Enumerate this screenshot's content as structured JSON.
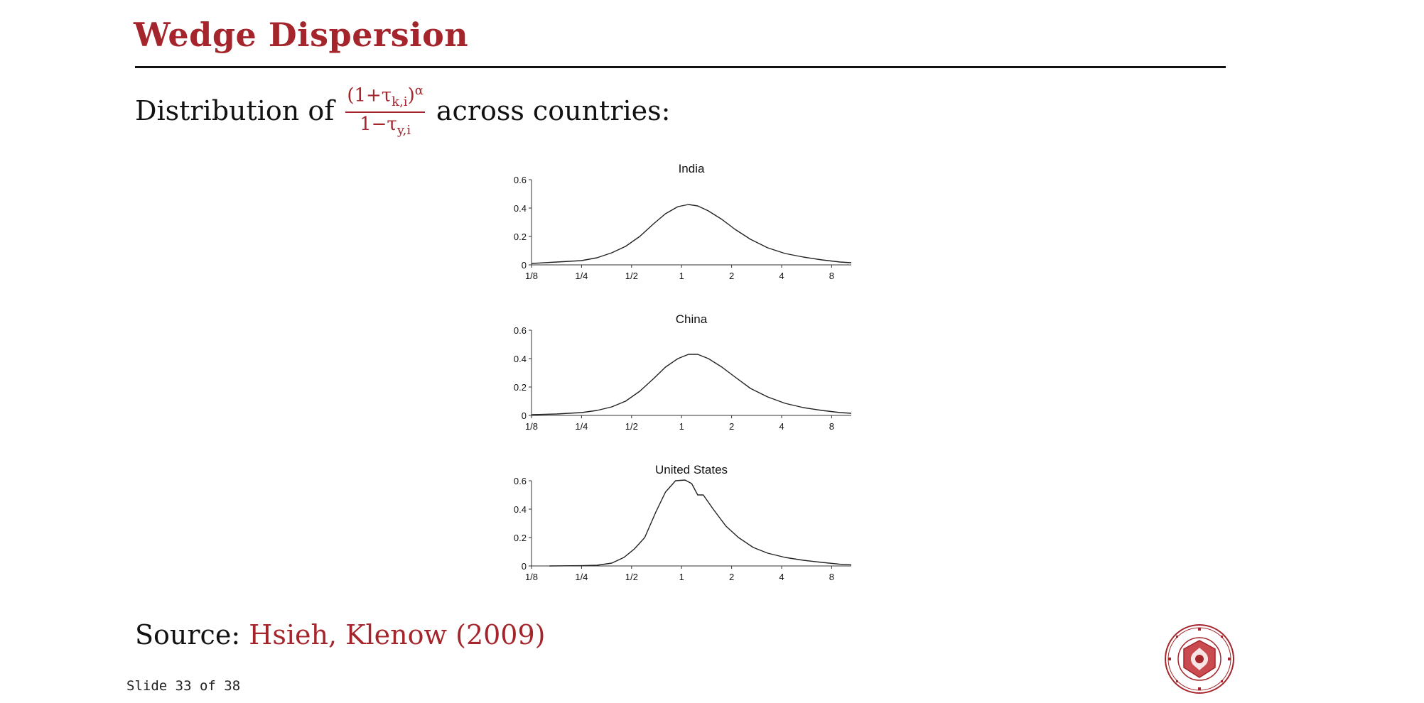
{
  "slide": {
    "title": "Wedge Dispersion",
    "subtitle_prefix": "Distribution of",
    "subtitle_suffix": "across countries:",
    "formula": {
      "numerator": "(1+τ",
      "numerator_sub": "k,i",
      "numerator_close": ")",
      "numerator_sup": "α",
      "denominator": "1−τ",
      "denominator_sub": "y,i"
    },
    "source_label": "Source:",
    "source_link": "Hsieh, Klenow (2009)",
    "footer": "Slide 33 of 38",
    "seal_name": "Carnegie Mellon University seal",
    "seal_text": "CARNEGIE MELLON UNIVERSITY · PITTSBURGH PENNSYLVANIA 1900"
  },
  "colors": {
    "accent": "#a4262c",
    "text": "#111111",
    "line": "#222222"
  },
  "chart_data": [
    {
      "type": "line",
      "title": "India",
      "x_scale": "log2",
      "xticks": [
        "1/8",
        "1/4",
        "1/2",
        "1",
        "2",
        "4",
        "8"
      ],
      "xlim": [
        0.125,
        10.5
      ],
      "ylim": [
        0,
        0.6
      ],
      "yticks": [
        "0",
        "0.2",
        "0.4",
        "0.6"
      ],
      "grid": false,
      "x": [
        0.125,
        0.177,
        0.25,
        0.31,
        0.38,
        0.46,
        0.56,
        0.68,
        0.8,
        0.95,
        1.1,
        1.25,
        1.45,
        1.75,
        2.1,
        2.6,
        3.3,
        4.2,
        5.4,
        7,
        9,
        10.5
      ],
      "y": [
        0.01,
        0.02,
        0.03,
        0.05,
        0.085,
        0.13,
        0.2,
        0.29,
        0.36,
        0.41,
        0.425,
        0.415,
        0.38,
        0.32,
        0.25,
        0.18,
        0.12,
        0.08,
        0.055,
        0.035,
        0.02,
        0.015
      ]
    },
    {
      "type": "line",
      "title": "China",
      "x_scale": "log2",
      "xticks": [
        "1/8",
        "1/4",
        "1/2",
        "1",
        "2",
        "4",
        "8"
      ],
      "xlim": [
        0.125,
        10.5
      ],
      "ylim": [
        0,
        0.6
      ],
      "yticks": [
        "0",
        "0.2",
        "0.4",
        "0.6"
      ],
      "grid": false,
      "x": [
        0.125,
        0.177,
        0.25,
        0.31,
        0.38,
        0.46,
        0.56,
        0.68,
        0.8,
        0.95,
        1.1,
        1.25,
        1.45,
        1.75,
        2.1,
        2.6,
        3.3,
        4.2,
        5.4,
        7,
        9,
        10.5
      ],
      "y": [
        0.005,
        0.01,
        0.02,
        0.035,
        0.06,
        0.1,
        0.17,
        0.26,
        0.34,
        0.4,
        0.43,
        0.43,
        0.4,
        0.34,
        0.27,
        0.19,
        0.13,
        0.085,
        0.055,
        0.035,
        0.02,
        0.015
      ]
    },
    {
      "type": "line",
      "title": "United States",
      "x_scale": "log2",
      "xticks": [
        "1/8",
        "1/4",
        "1/2",
        "1",
        "2",
        "4",
        "8"
      ],
      "xlim": [
        0.125,
        10.5
      ],
      "ylim": [
        0,
        0.6
      ],
      "yticks": [
        "0",
        "0.2",
        "0.4",
        "0.6"
      ],
      "grid": false,
      "x": [
        0.16,
        0.25,
        0.31,
        0.38,
        0.45,
        0.52,
        0.6,
        0.7,
        0.8,
        0.92,
        1.05,
        1.15,
        1.25,
        1.35,
        1.55,
        1.85,
        2.2,
        2.7,
        3.3,
        4.2,
        5.4,
        7,
        9,
        10.5
      ],
      "y": [
        0,
        0.002,
        0.005,
        0.02,
        0.06,
        0.12,
        0.2,
        0.38,
        0.52,
        0.6,
        0.605,
        0.58,
        0.5,
        0.5,
        0.4,
        0.28,
        0.2,
        0.13,
        0.09,
        0.06,
        0.04,
        0.025,
        0.012,
        0.008
      ]
    }
  ]
}
